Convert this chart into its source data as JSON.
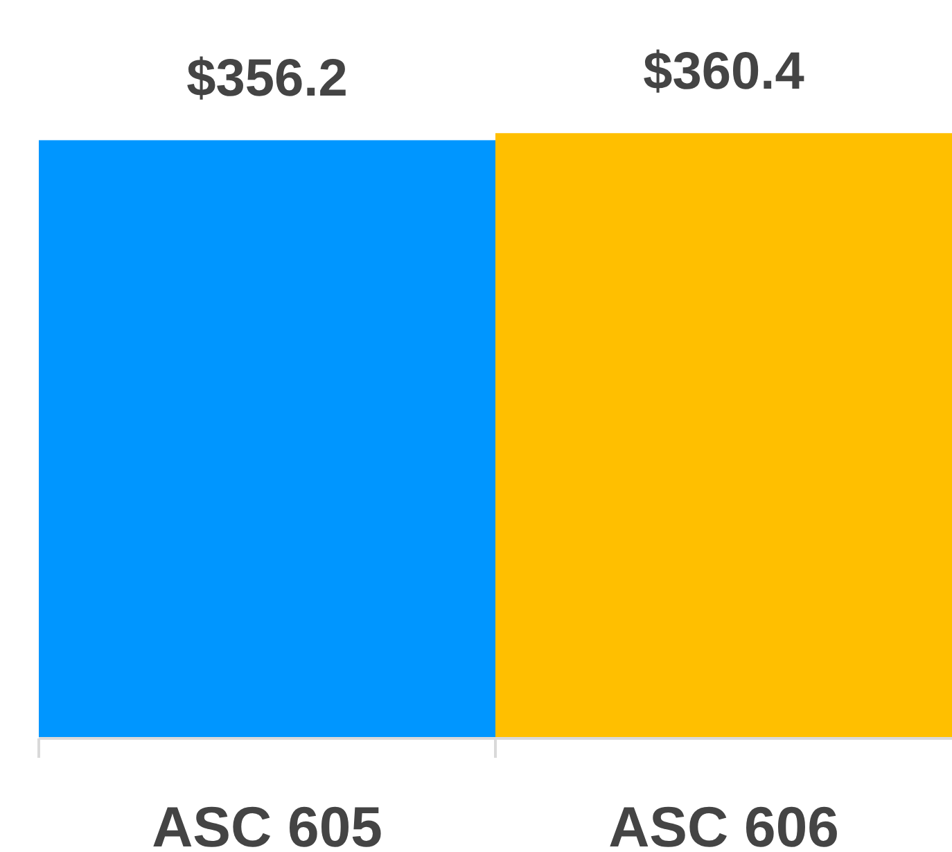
{
  "chart_data": {
    "type": "bar",
    "categories": [
      "ASC 605",
      "ASC 606"
    ],
    "values": [
      356.2,
      360.4
    ],
    "colors": [
      "#0096ff",
      "#ffbf00"
    ],
    "value_labels": [
      "$356.2",
      "$360.4"
    ],
    "tick_labels": "x"
  }
}
